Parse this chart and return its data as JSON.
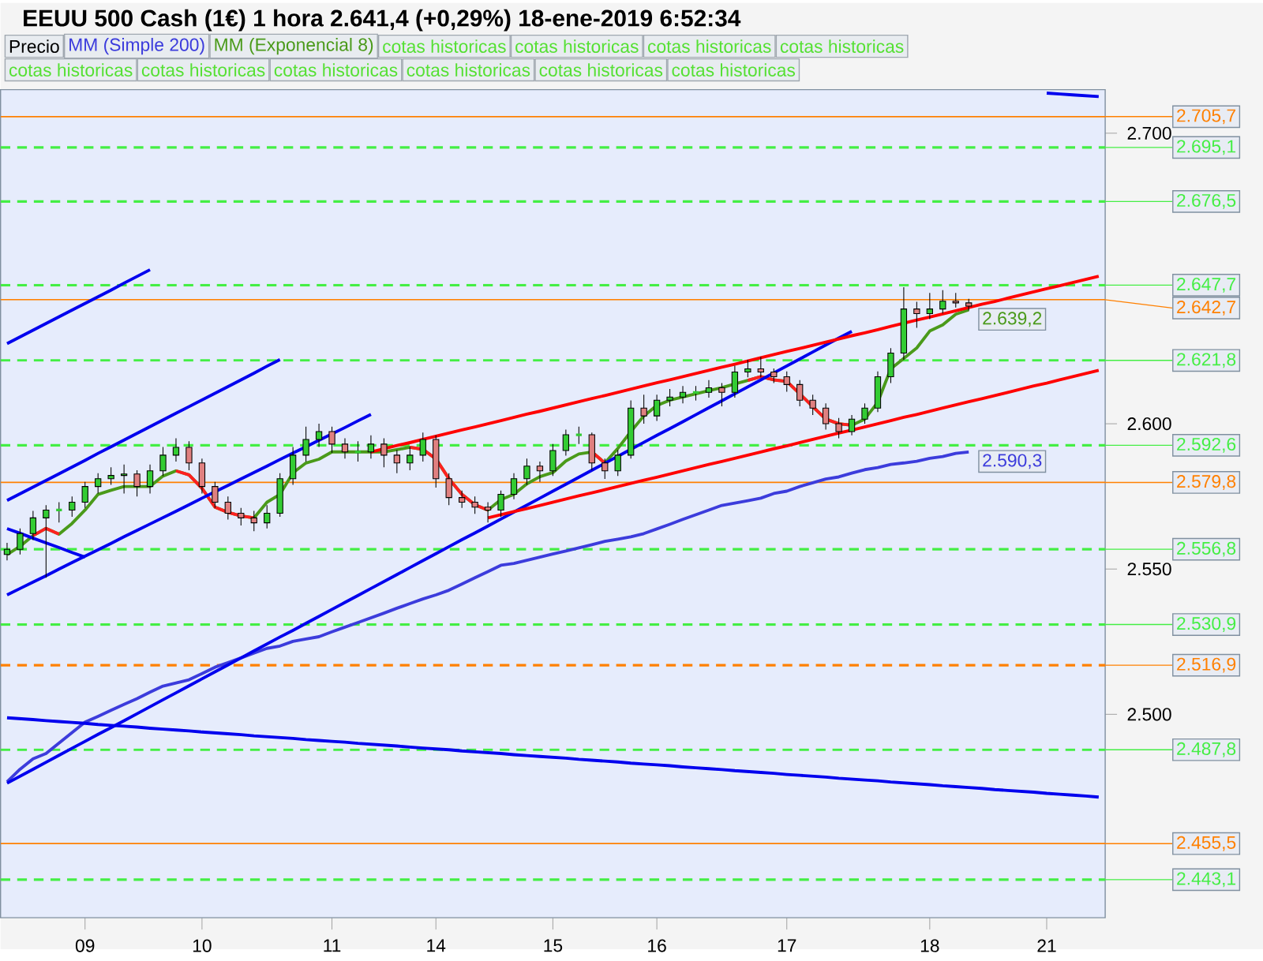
{
  "chart_data": {
    "type": "candlestick",
    "title": "EEUU 500 Cash (1€)   1 hora   2.641,4 (+0,29%)   18-ene-2019 6:52:34",
    "legend": "top",
    "ylim": [
      2430,
      2715
    ],
    "yticks": [
      {
        "value": 2500,
        "label": "2.500"
      },
      {
        "value": 2550,
        "label": "2.550"
      },
      {
        "value": 2600,
        "label": "2.600"
      },
      {
        "value": 2700,
        "label": "2.700"
      }
    ],
    "categories": [
      null,
      null,
      null,
      null,
      null,
      null,
      "09",
      null,
      null,
      null,
      null,
      null,
      null,
      null,
      null,
      "10",
      null,
      null,
      null,
      null,
      null,
      null,
      null,
      null,
      null,
      "11",
      null,
      null,
      null,
      null,
      null,
      null,
      null,
      "14",
      null,
      null,
      null,
      null,
      null,
      null,
      null,
      null,
      "15",
      null,
      null,
      null,
      null,
      null,
      null,
      null,
      "16",
      null,
      null,
      null,
      null,
      null,
      null,
      null,
      null,
      null,
      "17",
      null,
      null,
      null,
      null,
      null,
      null,
      null,
      null,
      null,
      null,
      "18",
      null,
      null,
      null,
      null,
      null,
      null,
      null,
      null,
      "21",
      null,
      null,
      null,
      null
    ],
    "series": [
      {
        "name": "Precio",
        "ohlc": [
          [
            2555,
            2559,
            2553,
            2556.8
          ],
          [
            2556.8,
            2564,
            2555,
            2562.2
          ],
          [
            2562.2,
            2570,
            2560,
            2567.6
          ],
          [
            2567.6,
            2572,
            2547,
            2570.3
          ],
          [
            2570.3,
            2573,
            2566,
            2570.3
          ],
          [
            2570.3,
            2575,
            2568,
            2573
          ],
          [
            2573,
            2580,
            2571,
            2578.4
          ],
          [
            2578.4,
            2583,
            2576,
            2581.1
          ],
          [
            2581.1,
            2585,
            2579,
            2582.2
          ],
          [
            2582.2,
            2586,
            2576,
            2582.7
          ],
          [
            2582.7,
            2584,
            2575,
            2578.4
          ],
          [
            2578.4,
            2586,
            2576,
            2583.8
          ],
          [
            2583.8,
            2592,
            2582,
            2589.2
          ],
          [
            2589.2,
            2595,
            2587,
            2591.9
          ],
          [
            2591.9,
            2594,
            2584,
            2586.5
          ],
          [
            2586.5,
            2588,
            2576,
            2578.4
          ],
          [
            2578.4,
            2580,
            2571,
            2573
          ],
          [
            2573,
            2575,
            2567,
            2569.2
          ],
          [
            2569.2,
            2571,
            2565,
            2567.6
          ],
          [
            2567.6,
            2570,
            2563,
            2565.9
          ],
          [
            2565.9,
            2572,
            2564,
            2569.2
          ],
          [
            2569.2,
            2583,
            2568,
            2581.1
          ],
          [
            2581.1,
            2592,
            2579,
            2589.2
          ],
          [
            2589.2,
            2599,
            2587,
            2594.6
          ],
          [
            2594.6,
            2600,
            2592,
            2597.3
          ],
          [
            2597.3,
            2599,
            2590,
            2593
          ],
          [
            2593,
            2595,
            2588,
            2590.3
          ],
          [
            2590.3,
            2594,
            2587,
            2590.3
          ],
          [
            2590.3,
            2596,
            2588,
            2593
          ],
          [
            2593,
            2595,
            2585,
            2589.2
          ],
          [
            2589.2,
            2591,
            2583,
            2586.5
          ],
          [
            2586.5,
            2592,
            2584,
            2589.2
          ],
          [
            2589.2,
            2597,
            2587,
            2594.6
          ],
          [
            2594.6,
            2596,
            2578,
            2581.1
          ],
          [
            2581.1,
            2583,
            2572,
            2574.6
          ],
          [
            2574.6,
            2577,
            2571,
            2573
          ],
          [
            2573,
            2575,
            2569,
            2571.3
          ],
          [
            2571.3,
            2573,
            2566,
            2570.3
          ],
          [
            2570.3,
            2577,
            2568,
            2575.7
          ],
          [
            2575.7,
            2583,
            2574,
            2581.1
          ],
          [
            2581.1,
            2588,
            2579,
            2585.4
          ],
          [
            2585.4,
            2587,
            2580,
            2583.8
          ],
          [
            2583.8,
            2593,
            2582,
            2590.8
          ],
          [
            2590.8,
            2598,
            2589,
            2596.2
          ],
          [
            2596.2,
            2599,
            2593,
            2596.2
          ],
          [
            2596.2,
            2597,
            2584,
            2586.5
          ],
          [
            2586.5,
            2588,
            2581,
            2583.8
          ],
          [
            2583.8,
            2591,
            2582,
            2589.2
          ],
          [
            2589.2,
            2608,
            2588,
            2605.4
          ],
          [
            2605.4,
            2610,
            2600,
            2602.7
          ],
          [
            2602.7,
            2610,
            2601,
            2608.1
          ],
          [
            2608.1,
            2612,
            2606,
            2609.2
          ],
          [
            2609.2,
            2613,
            2607,
            2610.8
          ],
          [
            2610.8,
            2613,
            2608,
            2610.8
          ],
          [
            2610.8,
            2615,
            2609,
            2612.4
          ],
          [
            2612.4,
            2614,
            2606,
            2610.8
          ],
          [
            2610.8,
            2620,
            2609,
            2617.8
          ],
          [
            2617.8,
            2622,
            2616,
            2618.9
          ],
          [
            2618.9,
            2623,
            2616,
            2617.8
          ],
          [
            2617.8,
            2619,
            2614,
            2616.2
          ],
          [
            2616.2,
            2618,
            2611,
            2613.5
          ],
          [
            2613.5,
            2615,
            2606,
            2608.1
          ],
          [
            2608.1,
            2610,
            2603,
            2605.4
          ],
          [
            2605.4,
            2607,
            2598,
            2600
          ],
          [
            2600,
            2602,
            2595,
            2597.3
          ],
          [
            2597.3,
            2603,
            2596,
            2601.6
          ],
          [
            2601.6,
            2607,
            2600,
            2605.4
          ],
          [
            2605.4,
            2618,
            2604,
            2616.2
          ],
          [
            2616.2,
            2626,
            2614,
            2624.3
          ],
          [
            2624.3,
            2647,
            2622,
            2639.5
          ],
          [
            2639.5,
            2642,
            2633,
            2637.9
          ],
          [
            2637.9,
            2645,
            2636,
            2639.5
          ],
          [
            2639.5,
            2646,
            2638,
            2642.2
          ],
          [
            2642.2,
            2645,
            2640,
            2641.6
          ],
          [
            2641.6,
            2643,
            2639,
            2640.5
          ],
          null,
          null,
          null,
          null,
          null,
          null,
          null,
          null,
          null,
          null
        ],
        "colors": [
          "#33cc33",
          "#33cc33",
          "#33cc33",
          "#33cc33",
          "#33cc33",
          "#33cc33",
          "#33cc33",
          "#33cc33",
          "#33cc33",
          "#33cc33",
          "#e08080",
          "#33cc33",
          "#33cc33",
          "#33cc33",
          "#e08080",
          "#e08080",
          "#e08080",
          "#e08080",
          "#e08080",
          "#e08080",
          "#33cc33",
          "#33cc33",
          "#33cc33",
          "#33cc33",
          "#33cc33",
          "#e08080",
          "#e08080",
          "#33cc33",
          "#33cc33",
          "#e08080",
          "#e08080",
          "#33cc33",
          "#33cc33",
          "#e08080",
          "#e08080",
          "#e08080",
          "#e08080",
          "#e08080",
          "#33cc33",
          "#33cc33",
          "#33cc33",
          "#e08080",
          "#33cc33",
          "#33cc33",
          "#33cc33",
          "#e08080",
          "#e08080",
          "#33cc33",
          "#33cc33",
          "#e08080",
          "#33cc33",
          "#33cc33",
          "#33cc33",
          "#33cc33",
          "#33cc33",
          "#e08080",
          "#33cc33",
          "#33cc33",
          "#e08080",
          "#e08080",
          "#e08080",
          "#e08080",
          "#e08080",
          "#e08080",
          "#e08080",
          "#33cc33",
          "#33cc33",
          "#33cc33",
          "#33cc33",
          "#33cc33",
          "#e08080",
          "#33cc33",
          "#33cc33",
          "#e08080",
          "#e08080",
          null,
          null,
          null,
          null,
          null,
          null,
          null,
          null,
          null,
          null
        ]
      },
      {
        "name": "MM (Simple 200)",
        "type": "line",
        "color": "#3c3cdc",
        "values": [
          2476.8,
          2481.1,
          2484.7,
          2486.5,
          2490.1,
          2493.7,
          2497.3,
          2499.3,
          2501.4,
          2503.4,
          2505.4,
          2507.6,
          2509.7,
          2510.8,
          2511.9,
          2514.0,
          2516.2,
          2517.8,
          2519.4,
          2521.1,
          2522.7,
          2523.5,
          2525.1,
          2525.9,
          2526.7,
          2528.4,
          2530.0,
          2531.6,
          2533.2,
          2534.8,
          2536.5,
          2538.1,
          2539.7,
          2541.1,
          2542.7,
          2544.8,
          2547.0,
          2549.1,
          2551.3,
          2551.9,
          2553.0,
          2554.1,
          2555.2,
          2556.2,
          2557.3,
          2558.4,
          2559.5,
          2560.3,
          2561.1,
          2562.2,
          2563.8,
          2565.4,
          2567.1,
          2568.7,
          2570.3,
          2571.9,
          2572.7,
          2573.5,
          2574.4,
          2576.0,
          2576.8,
          2578.4,
          2579.7,
          2581.0,
          2581.7,
          2583.0,
          2584.2,
          2584.9,
          2586.0,
          2586.5,
          2587.1,
          2588.1,
          2588.7,
          2589.8,
          2590.3,
          null,
          null,
          null,
          null,
          null,
          null,
          null,
          null,
          null,
          null
        ],
        "value_labels": [
          null,
          null,
          null,
          null,
          null,
          null,
          null,
          null,
          null,
          null,
          null,
          null,
          null,
          null,
          null,
          null,
          null,
          null,
          null,
          null,
          null,
          null,
          null,
          null,
          null,
          null,
          null,
          null,
          null,
          null,
          null,
          null,
          null,
          null,
          null,
          null,
          null,
          null,
          null,
          null,
          null,
          null,
          null,
          null,
          null,
          null,
          null,
          null,
          null,
          null,
          null,
          null,
          null,
          null,
          null,
          null,
          null,
          null,
          null,
          null,
          null,
          null,
          null,
          null,
          null,
          null,
          null,
          null,
          null,
          null,
          null,
          null,
          null,
          null,
          "2.590,3",
          null,
          null,
          null,
          null,
          null,
          null,
          null,
          null,
          null,
          null
        ]
      },
      {
        "name": "MM (Exponencial 8)",
        "type": "line",
        "color": "#4a9a1a",
        "values": [
          2555.0,
          2557.8,
          2561.5,
          2564.0,
          2562.0,
          2565.7,
          2570.3,
          2575.7,
          2577.1,
          2578.4,
          2578.4,
          2578.4,
          2582.0,
          2583.8,
          2582.4,
          2577.8,
          2571.3,
          2569.5,
          2568.3,
          2567.6,
          2573.0,
          2575.7,
          2583.1,
          2586.5,
          2587.8,
          2590.3,
          2590.3,
          2590.3,
          2590.3,
          2590.3,
          2591.1,
          2591.9,
          2591.2,
          2587.9,
          2581.1,
          2575.7,
          2572.1,
          2570.3,
          2573.9,
          2575.7,
          2579.3,
          2581.8,
          2583.2,
          2587.2,
          2589.6,
          2590.3,
          2586.5,
          2591.5,
          2597.3,
          2602.7,
          2606.3,
          2608.1,
          2609.2,
          2610.3,
          2611.4,
          2612.4,
          2613.7,
          2614.9,
          2616.2,
          2615.1,
          2614.6,
          2610.3,
          2605.9,
          2601.6,
          2600.0,
          2599.5,
          2601.6,
          2607.4,
          2618.9,
          2622.5,
          2626.1,
          2631.9,
          2634.0,
          2637.7,
          2639.2,
          null,
          null,
          null,
          null,
          null,
          null,
          null,
          null,
          null,
          null
        ],
        "value_labels": [
          null,
          null,
          null,
          null,
          null,
          null,
          null,
          null,
          null,
          null,
          null,
          null,
          null,
          null,
          null,
          null,
          null,
          null,
          null,
          null,
          null,
          null,
          null,
          null,
          null,
          null,
          null,
          null,
          null,
          null,
          null,
          null,
          null,
          null,
          null,
          null,
          null,
          null,
          null,
          null,
          null,
          null,
          null,
          null,
          null,
          null,
          null,
          null,
          null,
          null,
          null,
          null,
          null,
          null,
          null,
          null,
          null,
          null,
          null,
          null,
          null,
          null,
          null,
          null,
          null,
          null,
          null,
          null,
          null,
          null,
          null,
          null,
          null,
          null,
          "2.639,2",
          null,
          null,
          null,
          null,
          null,
          null,
          null,
          null,
          null,
          null
        ]
      },
      {
        "type": "line",
        "color": "#ff2020",
        "values": [
          null,
          null,
          2561.5,
          2564.0,
          2562.0,
          null,
          null,
          null,
          null,
          null,
          null,
          null,
          null,
          2583.8,
          2582.4,
          2577.8,
          2571.3,
          2569.5,
          2568.3,
          2567.6,
          null,
          null,
          null,
          null,
          null,
          null,
          null,
          null,
          null,
          null,
          null,
          2591.9,
          2591.2,
          2587.9,
          2581.1,
          2575.7,
          2572.1,
          2570.3,
          null,
          null,
          null,
          null,
          null,
          null,
          null,
          2590.3,
          2586.5,
          null,
          null,
          null,
          null,
          null,
          null,
          null,
          null,
          null,
          null,
          2614.9,
          2616.2,
          2615.1,
          2614.6,
          2610.3,
          2605.9,
          2601.6,
          2600.0,
          2599.5,
          null,
          null,
          null,
          null,
          null,
          null,
          null,
          null,
          null,
          null,
          null,
          null,
          null,
          null,
          null,
          null,
          null,
          null,
          null
        ]
      },
      {
        "type": "line",
        "color": "#0000ee",
        "values": [
          2627.6,
          2629.9,
          2632.2,
          2634.5,
          2636.8,
          2639.1,
          2641.4,
          2643.7,
          2646.0,
          2648.4,
          2650.7,
          2653.0,
          null,
          null,
          null,
          null,
          null,
          null,
          null,
          null,
          null,
          null,
          null,
          null,
          null,
          null,
          null,
          null,
          null,
          null,
          null,
          null,
          null,
          null,
          null,
          null,
          null,
          null,
          null,
          null,
          null,
          null,
          null,
          null,
          null,
          null,
          null,
          null,
          null,
          null,
          null,
          null,
          null,
          null,
          null,
          null,
          null,
          null,
          null,
          null,
          null,
          null,
          null,
          null,
          null,
          null,
          null,
          null,
          null,
          null,
          null,
          null,
          null,
          null,
          null,
          null,
          null,
          null,
          null,
          null,
          null,
          null,
          null,
          null,
          null
        ]
      },
      {
        "type": "line",
        "color": "#0000ee",
        "values": [
          2573.6,
          2575.9,
          2578.2,
          2580.5,
          2582.8,
          2585.1,
          2587.4,
          2589.8,
          2592.1,
          2594.4,
          2596.7,
          2599.0,
          2601.3,
          2603.6,
          2605.9,
          2608.2,
          2610.5,
          2612.8,
          2615.1,
          2617.4,
          2619.8,
          2622.1,
          null,
          null,
          null,
          null,
          null,
          null,
          null,
          null,
          null,
          null,
          null,
          null,
          null,
          null,
          null,
          null,
          null,
          null,
          null,
          null,
          null,
          null,
          null,
          null,
          null,
          null,
          null,
          null,
          null,
          null,
          null,
          null,
          null,
          null,
          null,
          null,
          null,
          null,
          null,
          null,
          null,
          null,
          null,
          null,
          null,
          null,
          null,
          null,
          null,
          null,
          null,
          null,
          null,
          null,
          null,
          null,
          null,
          null,
          null,
          null,
          null,
          null,
          null
        ]
      },
      {
        "type": "line",
        "color": "#0000ee",
        "values": [
          2541.1,
          2543.3,
          2545.5,
          2547.7,
          2550.0,
          2552.2,
          2554.4,
          2556.6,
          2558.8,
          2561.1,
          2563.3,
          2565.5,
          2567.7,
          2569.9,
          2572.1,
          2574.4,
          2576.6,
          2578.8,
          2581.0,
          2583.2,
          2585.4,
          2587.7,
          2589.9,
          2592.1,
          2594.3,
          2596.5,
          2598.7,
          2601.0,
          2603.2,
          null,
          null,
          null,
          null,
          null,
          null,
          null,
          null,
          null,
          null,
          null,
          null,
          null,
          null,
          null,
          null,
          null,
          null,
          null,
          null,
          null,
          null,
          null,
          null,
          null,
          null,
          null,
          null,
          null,
          null,
          null,
          null,
          null,
          null,
          null,
          null,
          null,
          null,
          null,
          null,
          null,
          null,
          null,
          null,
          null,
          null,
          null,
          null,
          null,
          null,
          null,
          null,
          null,
          null,
          null,
          null
        ]
      },
      {
        "type": "line",
        "color": "#0000ee",
        "values": [
          2563.9,
          2562.3,
          2560.6,
          2559.0,
          2557.4,
          2555.7,
          2554.1,
          null,
          null,
          null,
          null,
          null,
          null,
          null,
          null,
          null,
          null,
          null,
          null,
          null,
          null,
          null,
          null,
          null,
          null,
          null,
          null,
          null,
          null,
          null,
          null,
          null,
          null,
          null,
          null,
          null,
          null,
          null,
          null,
          null,
          null,
          null,
          null,
          null,
          null,
          null,
          null,
          null,
          null,
          null,
          null,
          null,
          null,
          null,
          null,
          null,
          null,
          null,
          null,
          null,
          null,
          null,
          null,
          null,
          null,
          null,
          null,
          null,
          null,
          null,
          null,
          null,
          null,
          null,
          null,
          null,
          null,
          null,
          null,
          null,
          null,
          null,
          null,
          null,
          null
        ]
      },
      {
        "type": "line",
        "color": "#0000ee",
        "values": [
          2476.3,
          2478.7,
          2481.1,
          2483.5,
          2485.9,
          2488.3,
          2490.7,
          2493.1,
          2495.4,
          2497.8,
          2500.2,
          2502.6,
          2505.0,
          2507.4,
          2509.8,
          2512.2,
          2514.6,
          2517.0,
          2519.4,
          2521.8,
          2524.2,
          2526.6,
          2528.9,
          2531.3,
          2533.7,
          2536.1,
          2538.5,
          2540.9,
          2543.3,
          2545.7,
          2548.1,
          2550.5,
          2552.9,
          2555.3,
          2557.7,
          2560.1,
          2562.4,
          2564.8,
          2567.2,
          2569.6,
          2572.0,
          2574.4,
          2576.8,
          2579.2,
          2581.6,
          2584.0,
          2586.4,
          2588.8,
          2591.2,
          2593.6,
          2596.0,
          2598.3,
          2600.7,
          2603.1,
          2605.5,
          2607.9,
          2610.3,
          2612.7,
          2615.1,
          2617.5,
          2619.9,
          2622.3,
          2624.7,
          2627.1,
          2629.5,
          2631.8,
          null,
          null,
          null,
          null,
          null,
          null,
          null,
          null,
          null,
          null,
          null,
          null,
          null,
          null,
          null,
          null,
          null,
          null,
          null
        ]
      },
      {
        "type": "line",
        "color": "#0000ee",
        "values": [
          2498.8,
          2498.5,
          2498.2,
          2497.8,
          2497.5,
          2497.2,
          2496.9,
          2496.5,
          2496.2,
          2495.9,
          2495.6,
          2495.2,
          2494.9,
          2494.6,
          2494.3,
          2493.9,
          2493.6,
          2493.3,
          2493.0,
          2492.6,
          2492.3,
          2492.0,
          2491.7,
          2491.3,
          2491.0,
          2490.7,
          2490.4,
          2490.0,
          2489.7,
          2489.4,
          2489.1,
          2488.7,
          2488.4,
          2488.1,
          2487.8,
          2487.4,
          2487.1,
          2486.8,
          2486.5,
          2486.1,
          2485.8,
          2485.5,
          2485.2,
          2484.9,
          2484.5,
          2484.2,
          2483.9,
          2483.6,
          2483.2,
          2482.9,
          2482.6,
          2482.3,
          2481.9,
          2481.6,
          2481.3,
          2481.0,
          2480.6,
          2480.3,
          2480.0,
          2479.7,
          2479.3,
          2479.0,
          2478.7,
          2478.4,
          2478.0,
          2477.7,
          2477.4,
          2477.1,
          2476.7,
          2476.4,
          2476.1,
          2475.8,
          2475.4,
          2475.1,
          2474.8,
          2474.5,
          2474.1,
          2473.8,
          2473.5,
          2473.2,
          2472.8,
          2472.5,
          2472.2,
          2471.9,
          2471.5
        ]
      },
      {
        "type": "line",
        "color": "#0000ee",
        "values": [
          null,
          null,
          null,
          null,
          null,
          null,
          null,
          null,
          null,
          null,
          null,
          null,
          null,
          null,
          null,
          null,
          null,
          null,
          null,
          null,
          null,
          null,
          null,
          null,
          null,
          null,
          null,
          null,
          null,
          null,
          null,
          null,
          null,
          null,
          null,
          null,
          null,
          null,
          null,
          null,
          null,
          null,
          null,
          null,
          null,
          null,
          null,
          null,
          null,
          null,
          null,
          null,
          null,
          null,
          null,
          null,
          null,
          null,
          null,
          null,
          null,
          null,
          null,
          null,
          null,
          null,
          null,
          null,
          null,
          null,
          null,
          null,
          null,
          null,
          null,
          null,
          null,
          null,
          null,
          null,
          2713.8,
          2713.5,
          2713.2,
          2712.9,
          2712.6
        ]
      },
      {
        "type": "line",
        "color": "#ff0000",
        "values": [
          null,
          null,
          null,
          null,
          null,
          null,
          null,
          null,
          null,
          null,
          null,
          null,
          null,
          null,
          null,
          null,
          null,
          null,
          null,
          null,
          null,
          null,
          null,
          null,
          null,
          null,
          null,
          null,
          2590.3,
          2591.4,
          2592.5,
          2593.5,
          2594.6,
          2595.7,
          2596.8,
          2597.9,
          2598.9,
          2600.0,
          2601.1,
          2602.2,
          2603.3,
          2604.3,
          2605.4,
          2606.5,
          2607.6,
          2608.7,
          2609.7,
          2610.8,
          2611.9,
          2613.0,
          2614.1,
          2615.1,
          2616.2,
          2617.3,
          2618.4,
          2619.5,
          2620.5,
          2621.6,
          2622.7,
          2623.8,
          2624.9,
          2625.9,
          2627.0,
          2628.1,
          2629.2,
          2630.3,
          2631.3,
          2632.4,
          2633.5,
          2634.6,
          2635.7,
          2636.7,
          2637.8,
          2638.9,
          2640.0,
          2641.1,
          2642.1,
          2643.2,
          2644.3,
          2645.4,
          2646.5,
          2647.5,
          2648.6,
          2649.7,
          2650.8
        ]
      },
      {
        "type": "line",
        "color": "#ff0000",
        "values": [
          null,
          null,
          null,
          null,
          null,
          null,
          null,
          null,
          null,
          null,
          null,
          null,
          null,
          null,
          null,
          null,
          null,
          null,
          null,
          null,
          null,
          null,
          null,
          null,
          null,
          null,
          null,
          null,
          null,
          null,
          null,
          null,
          null,
          null,
          null,
          null,
          null,
          2567.6,
          2568.7,
          2569.8,
          2570.8,
          2571.9,
          2573.0,
          2574.1,
          2575.2,
          2576.2,
          2577.3,
          2578.4,
          2579.5,
          2580.6,
          2581.6,
          2582.7,
          2583.8,
          2584.9,
          2586.0,
          2587.0,
          2588.1,
          2589.2,
          2590.3,
          2591.4,
          2592.4,
          2593.5,
          2594.6,
          2595.7,
          2596.8,
          2597.8,
          2598.9,
          2600.0,
          2601.1,
          2602.2,
          2603.2,
          2604.3,
          2605.4,
          2606.5,
          2607.6,
          2608.6,
          2609.7,
          2610.8,
          2611.9,
          2613.0,
          2614.0,
          2615.1,
          2616.2,
          2617.3,
          2618.4
        ]
      }
    ],
    "ref_lines": [
      {
        "axis": "y",
        "value": 2705.7,
        "label": "2.705,7",
        "color": "#ff8000",
        "line_style": "solid"
      },
      {
        "axis": "y",
        "value": 2695.1,
        "label": "2.695,1",
        "color": "#44ee44",
        "line_style": "dashed"
      },
      {
        "axis": "y",
        "value": 2676.5,
        "label": "2.676,5",
        "color": "#44ee44",
        "line_style": "dashed"
      },
      {
        "axis": "y",
        "value": 2647.7,
        "label": "2.647,7",
        "color": "#44ee44",
        "line_style": "dashed"
      },
      {
        "axis": "y",
        "value": 2642.7,
        "label": "2.642,7",
        "color": "#ff8000",
        "line_style": "solid"
      },
      {
        "axis": "y",
        "value": 2621.8,
        "label": "2.621,8",
        "color": "#44ee44",
        "line_style": "dashed"
      },
      {
        "axis": "y",
        "value": 2592.6,
        "label": "2.592,6",
        "color": "#44ee44",
        "line_style": "dashed"
      },
      {
        "axis": "y",
        "value": 2579.8,
        "label": "2.579,8",
        "color": "#ff8000",
        "line_style": "solid"
      },
      {
        "axis": "y",
        "value": 2556.8,
        "label": "2.556,8",
        "color": "#44ee44",
        "line_style": "dashed"
      },
      {
        "axis": "y",
        "value": 2530.9,
        "label": "2.530,9",
        "color": "#44ee44",
        "line_style": "dashed"
      },
      {
        "axis": "y",
        "value": 2516.9,
        "label": "2.516,9",
        "color": "#ff8000",
        "line_style": "dashed"
      },
      {
        "axis": "y",
        "value": 2487.8,
        "label": "2.487,8",
        "color": "#44ee44",
        "line_style": "dashed"
      },
      {
        "axis": "y",
        "value": 2455.5,
        "label": "2.455,5",
        "color": "#ff8000",
        "line_style": "solid"
      },
      {
        "axis": "y",
        "value": 2443.1,
        "label": "2.443,1",
        "color": "#44ee44",
        "line_style": "dashed"
      }
    ],
    "annotations": [
      "cotas historicas",
      "cotas historicas",
      "cotas historicas",
      "cotas historicas",
      "cotas historicas",
      "cotas historicas",
      "cotas historicas",
      "cotas historicas",
      "cotas historicas",
      "cotas historicas"
    ]
  }
}
